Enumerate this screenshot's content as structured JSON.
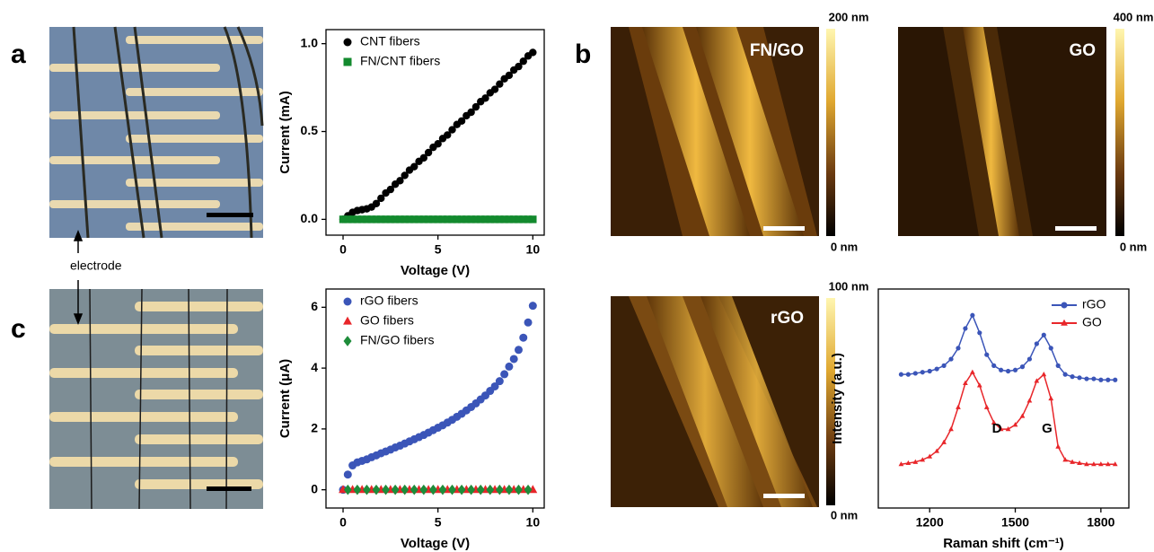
{
  "figure": {
    "panel_labels": [
      "a",
      "b",
      "c"
    ],
    "electrode_label": "electrode",
    "afm_images": [
      {
        "label": "FN/GO",
        "scale_max": "200 nm",
        "scale_min": "0 nm"
      },
      {
        "label": "GO",
        "scale_max": "400 nm",
        "scale_min": "0 nm"
      },
      {
        "label": "rGO",
        "scale_max": "100 nm",
        "scale_min": "0 nm"
      }
    ]
  },
  "chart_data": [
    {
      "type": "scatter",
      "xlabel": "Voltage (V)",
      "ylabel": "Current (mA)",
      "xlim": [
        -0.9,
        10.6
      ],
      "xticks": [
        0,
        5,
        10
      ],
      "ylim": [
        -0.09,
        1.08
      ],
      "yticks": [
        {
          "value": 0,
          "label": "0.0"
        },
        0.5,
        {
          "value": 1,
          "label": "1.0"
        }
      ],
      "x": [
        0,
        0.25,
        0.5,
        0.75,
        1,
        1.25,
        1.5,
        1.75,
        2,
        2.25,
        2.5,
        2.75,
        3,
        3.25,
        3.5,
        3.75,
        4,
        4.25,
        4.5,
        4.75,
        5,
        5.25,
        5.5,
        5.75,
        6,
        6.25,
        6.5,
        6.75,
        7,
        7.25,
        7.5,
        7.75,
        8,
        8.25,
        8.5,
        8.75,
        9,
        9.25,
        9.5,
        9.75,
        10
      ],
      "series": [
        {
          "name": "CNT fibers",
          "color": "#000000",
          "marker": "circle",
          "values": [
            0,
            0.02,
            0.04,
            0.05,
            0.055,
            0.06,
            0.07,
            0.09,
            0.12,
            0.15,
            0.17,
            0.2,
            0.22,
            0.25,
            0.28,
            0.3,
            0.33,
            0.35,
            0.38,
            0.41,
            0.43,
            0.46,
            0.48,
            0.51,
            0.54,
            0.56,
            0.59,
            0.61,
            0.64,
            0.67,
            0.69,
            0.72,
            0.74,
            0.77,
            0.8,
            0.82,
            0.85,
            0.87,
            0.9,
            0.93,
            0.95
          ]
        },
        {
          "name": "FN/CNT fibers",
          "color": "#138a2e",
          "marker": "square",
          "values": [
            0,
            0,
            0,
            0,
            0,
            0,
            0,
            0,
            0,
            0,
            0,
            0,
            0,
            0,
            0,
            0,
            0,
            0,
            0,
            0,
            0,
            0,
            0,
            0,
            0,
            0,
            0,
            0,
            0,
            0,
            0,
            0,
            0,
            0,
            0,
            0,
            0,
            0,
            0,
            0,
            0
          ]
        }
      ]
    },
    {
      "type": "scatter",
      "xlabel": "Voltage (V)",
      "ylabel": "Current (μA)",
      "xlim": [
        -0.9,
        10.6
      ],
      "xticks": [
        0,
        5,
        10
      ],
      "ylim": [
        -0.6,
        6.6
      ],
      "yticks": [
        0,
        2,
        4,
        6
      ],
      "series": [
        {
          "name": "rGO fibers",
          "color": "#3b55b8",
          "marker": "circle",
          "x": [
            0,
            0.25,
            0.5,
            0.75,
            1,
            1.25,
            1.5,
            1.75,
            2,
            2.25,
            2.5,
            2.75,
            3,
            3.25,
            3.5,
            3.75,
            4,
            4.25,
            4.5,
            4.75,
            5,
            5.25,
            5.5,
            5.75,
            6,
            6.25,
            6.5,
            6.75,
            7,
            7.25,
            7.5,
            7.75,
            8,
            8.25,
            8.5,
            8.75,
            9,
            9.25,
            9.5,
            9.75,
            10
          ],
          "values": [
            0,
            0.5,
            0.8,
            0.9,
            0.95,
            1.0,
            1.07,
            1.13,
            1.2,
            1.26,
            1.32,
            1.39,
            1.45,
            1.52,
            1.59,
            1.66,
            1.73,
            1.8,
            1.88,
            1.96,
            2.04,
            2.12,
            2.21,
            2.3,
            2.4,
            2.5,
            2.61,
            2.72,
            2.84,
            2.97,
            3.1,
            3.25,
            3.4,
            3.57,
            3.8,
            4.05,
            4.3,
            4.6,
            5.0,
            5.5,
            6.05
          ]
        },
        {
          "name": "GO fibers",
          "color": "#e8262a",
          "marker": "triangle",
          "x": [
            0,
            0.5,
            1,
            1.5,
            2,
            2.5,
            3,
            3.5,
            4,
            4.5,
            5,
            5.5,
            6,
            6.5,
            7,
            7.5,
            8,
            8.5,
            9,
            9.5,
            10
          ],
          "values": [
            0,
            0,
            0,
            0,
            0,
            0,
            0,
            0,
            0,
            0,
            0,
            0,
            0,
            0,
            0,
            0,
            0,
            0,
            0,
            0,
            0
          ]
        },
        {
          "name": "FN/GO fibers",
          "color": "#1e8c3a",
          "marker": "diamond",
          "x": [
            0.25,
            0.75,
            1.25,
            1.75,
            2.25,
            2.75,
            3.25,
            3.75,
            4.25,
            4.75,
            5.25,
            5.75,
            6.25,
            6.75,
            7.25,
            7.75,
            8.25,
            8.75,
            9.25,
            9.75
          ],
          "values": [
            0,
            0,
            0,
            0,
            0,
            0,
            0,
            0,
            0,
            0,
            0,
            0,
            0,
            0,
            0,
            0,
            0,
            0,
            0,
            0
          ]
        }
      ]
    },
    {
      "type": "line",
      "xlabel": "Raman shift (cm⁻¹)",
      "ylabel": "Intensity (a.u.)",
      "xlim": [
        1020,
        1898
      ],
      "xticks": [
        1200,
        1500,
        1800
      ],
      "ylim": [
        0,
        10
      ],
      "annotations": [
        "D",
        "G"
      ],
      "x": [
        1100,
        1125,
        1150,
        1175,
        1200,
        1225,
        1250,
        1275,
        1300,
        1325,
        1350,
        1375,
        1400,
        1425,
        1450,
        1475,
        1500,
        1525,
        1550,
        1575,
        1600,
        1625,
        1650,
        1675,
        1700,
        1725,
        1750,
        1775,
        1800,
        1825,
        1850
      ],
      "series": [
        {
          "name": "rGO",
          "color": "#3b55b8",
          "marker": "circle",
          "values": [
            6.1,
            6.1,
            6.15,
            6.2,
            6.25,
            6.35,
            6.5,
            6.8,
            7.3,
            8.2,
            8.8,
            8.0,
            7.0,
            6.5,
            6.3,
            6.25,
            6.3,
            6.45,
            6.8,
            7.5,
            7.9,
            7.3,
            6.5,
            6.1,
            6.0,
            5.95,
            5.9,
            5.9,
            5.85,
            5.85,
            5.85
          ]
        },
        {
          "name": "GO",
          "color": "#e8262a",
          "marker": "triangle",
          "values": [
            2.0,
            2.05,
            2.1,
            2.2,
            2.35,
            2.6,
            3.0,
            3.6,
            4.6,
            5.7,
            6.2,
            5.6,
            4.6,
            3.9,
            3.6,
            3.6,
            3.8,
            4.2,
            4.9,
            5.8,
            6.1,
            5.0,
            2.8,
            2.2,
            2.1,
            2.05,
            2.0,
            2.0,
            2.0,
            2.0,
            2.0
          ]
        }
      ]
    }
  ]
}
